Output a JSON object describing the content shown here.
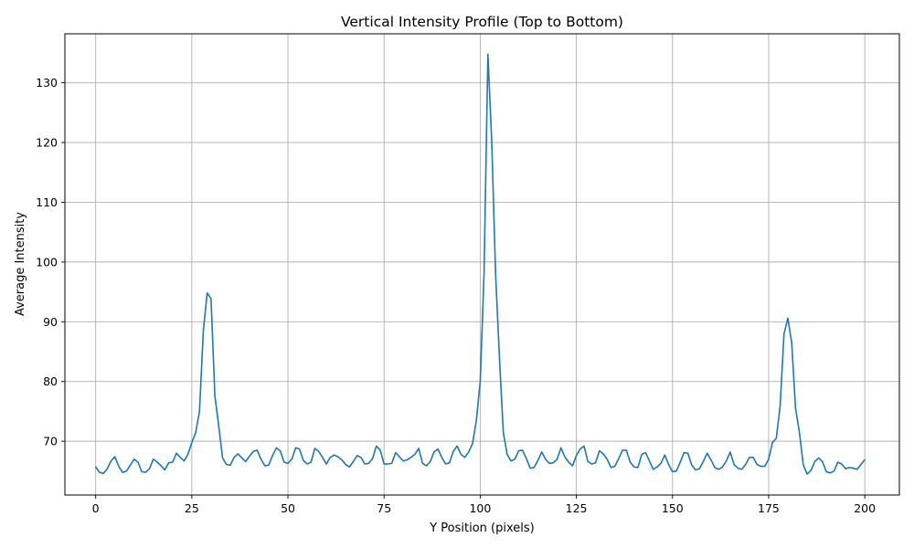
{
  "chart_data": {
    "type": "line",
    "title": "Vertical Intensity Profile (Top to Bottom)",
    "xlabel": "Y Position (pixels)",
    "ylabel": "Average Intensity",
    "xlim": [
      -8,
      209
    ],
    "ylim": [
      61,
      138.2
    ],
    "xticks": [
      0,
      25,
      50,
      75,
      100,
      125,
      150,
      175,
      200
    ],
    "yticks": [
      70,
      80,
      90,
      100,
      110,
      120,
      130
    ],
    "grid": true,
    "legend": "none",
    "colors": {
      "line": "#1f77b4",
      "grid": "#b0b0b0"
    },
    "series": [
      {
        "values": [
          65.7,
          64.8,
          64.6,
          65.4,
          66.7,
          67.4,
          65.8,
          64.8,
          65.0,
          66.0,
          67.0,
          66.5,
          64.9,
          64.8,
          65.4,
          67.0,
          66.5,
          65.9,
          65.2,
          66.4,
          66.5,
          68.0,
          67.3,
          66.7,
          67.8,
          69.8,
          71.4,
          75.0,
          88.5,
          94.8,
          93.9,
          77.6,
          72.6,
          67.2,
          66.1,
          66.0,
          67.3,
          67.9,
          67.2,
          66.6,
          67.5,
          68.3,
          68.5,
          67.0,
          65.9,
          66.0,
          67.6,
          68.9,
          68.4,
          66.5,
          66.3,
          67.0,
          68.9,
          68.7,
          66.8,
          66.2,
          66.5,
          68.8,
          68.3,
          67.3,
          66.2,
          67.3,
          67.7,
          67.4,
          66.9,
          66.1,
          65.7,
          66.6,
          67.6,
          67.3,
          66.2,
          66.3,
          67.1,
          69.2,
          68.5,
          66.2,
          66.2,
          66.3,
          68.1,
          67.4,
          66.7,
          66.9,
          67.3,
          67.8,
          68.8,
          66.3,
          65.9,
          66.6,
          68.2,
          68.7,
          67.3,
          66.2,
          66.4,
          68.3,
          69.2,
          67.8,
          67.3,
          68.2,
          69.6,
          73.5,
          80.0,
          98.0,
          134.8,
          120.0,
          98.0,
          84.0,
          71.5,
          67.8,
          66.7,
          67.0,
          68.4,
          68.5,
          67.1,
          65.5,
          65.6,
          66.8,
          68.2,
          67.0,
          66.3,
          66.4,
          67.0,
          68.9,
          67.4,
          66.5,
          65.9,
          67.6,
          68.7,
          69.2,
          66.6,
          66.2,
          66.4,
          68.4,
          67.9,
          67.0,
          65.6,
          65.8,
          67.1,
          68.5,
          68.5,
          66.5,
          65.7,
          65.6,
          67.8,
          68.1,
          66.7,
          65.3,
          65.7,
          66.3,
          67.7,
          66.1,
          64.9,
          65.0,
          66.5,
          68.1,
          68.0,
          66.0,
          65.2,
          65.4,
          66.6,
          68.0,
          66.9,
          65.6,
          65.3,
          65.7,
          66.7,
          68.2,
          66.1,
          65.5,
          65.3,
          66.1,
          67.3,
          67.3,
          66.1,
          65.8,
          65.8,
          67.0,
          69.8,
          70.5,
          76.0,
          88.0,
          90.6,
          86.5,
          75.5,
          71.5,
          66.1,
          64.5,
          65.1,
          66.6,
          67.2,
          66.6,
          64.9,
          64.7,
          65.0,
          66.5,
          66.2,
          65.4,
          65.6,
          65.5,
          65.3,
          66.1,
          66.9
        ]
      }
    ]
  }
}
